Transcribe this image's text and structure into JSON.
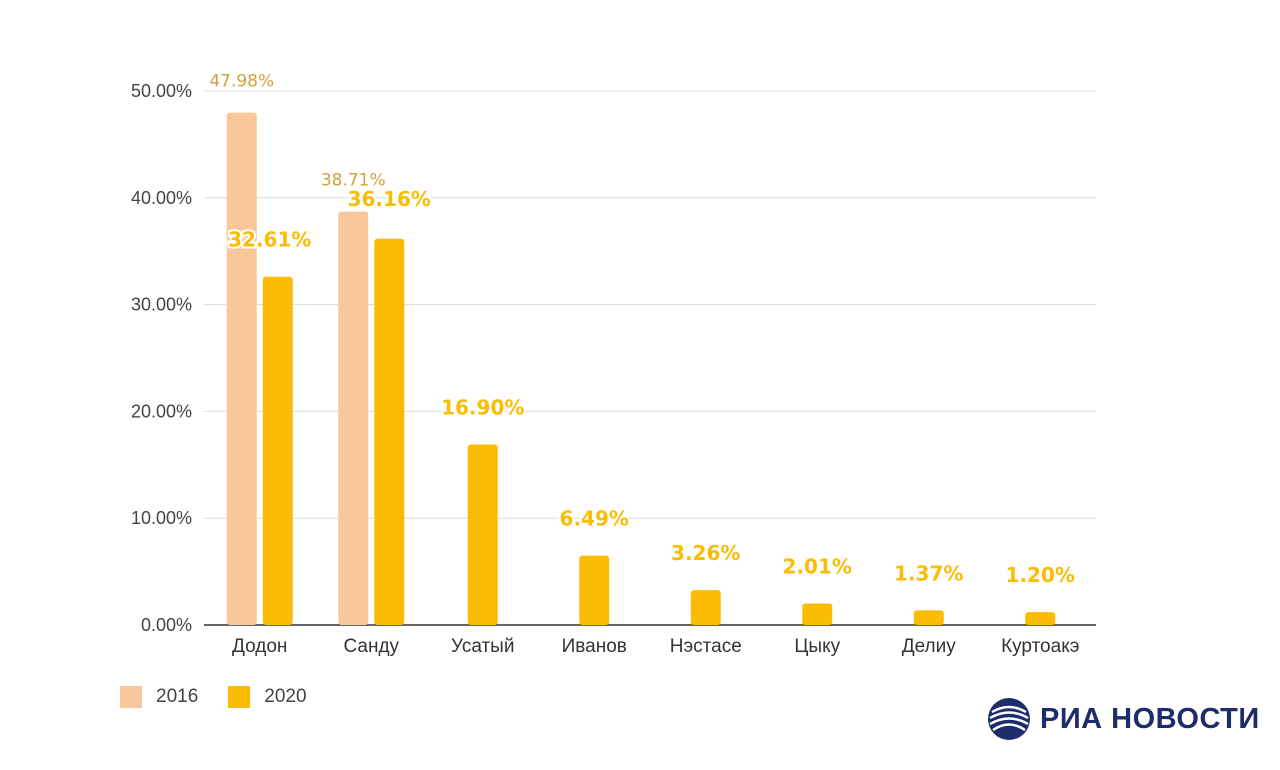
{
  "chart_data": {
    "type": "bar",
    "categories": [
      "Додон",
      "Санду",
      "Усатый",
      "Иванов",
      "Нэстасе",
      "Цыку",
      "Делиу",
      "Куртоакэ"
    ],
    "series": [
      {
        "name": "2016",
        "values": [
          47.98,
          38.71,
          null,
          null,
          null,
          null,
          null,
          null
        ],
        "labels": [
          "47.98%",
          "38.71%",
          "",
          "",
          "",
          "",
          "",
          ""
        ],
        "color": "#f8c89a"
      },
      {
        "name": "2020",
        "values": [
          32.61,
          36.16,
          16.9,
          6.49,
          3.26,
          2.01,
          1.37,
          1.2
        ],
        "labels": [
          "32.61%",
          "36.16%",
          "16.90%",
          "6.49%",
          "3.26%",
          "2.01%",
          "1.37%",
          "1.20%"
        ],
        "color": "#fbbc04"
      }
    ],
    "ylim": [
      0,
      50
    ],
    "yticks": [
      0,
      10,
      20,
      30,
      40,
      50
    ],
    "ytick_labels": [
      "0.00%",
      "10.00%",
      "20.00%",
      "30.00%",
      "40.00%",
      "50.00%"
    ],
    "grid": true,
    "legend_position": "bottom-left",
    "label_colors": {
      "2016": "#d4a23a",
      "2020": "#fbbc04"
    }
  },
  "legend": {
    "items": [
      {
        "label": "2016",
        "color": "#f8c89a"
      },
      {
        "label": "2020",
        "color": "#fbbc04"
      }
    ]
  },
  "logo": {
    "text": "РИА НОВОСТИ",
    "icon": "globe-icon",
    "color": "#1d2d6b"
  }
}
